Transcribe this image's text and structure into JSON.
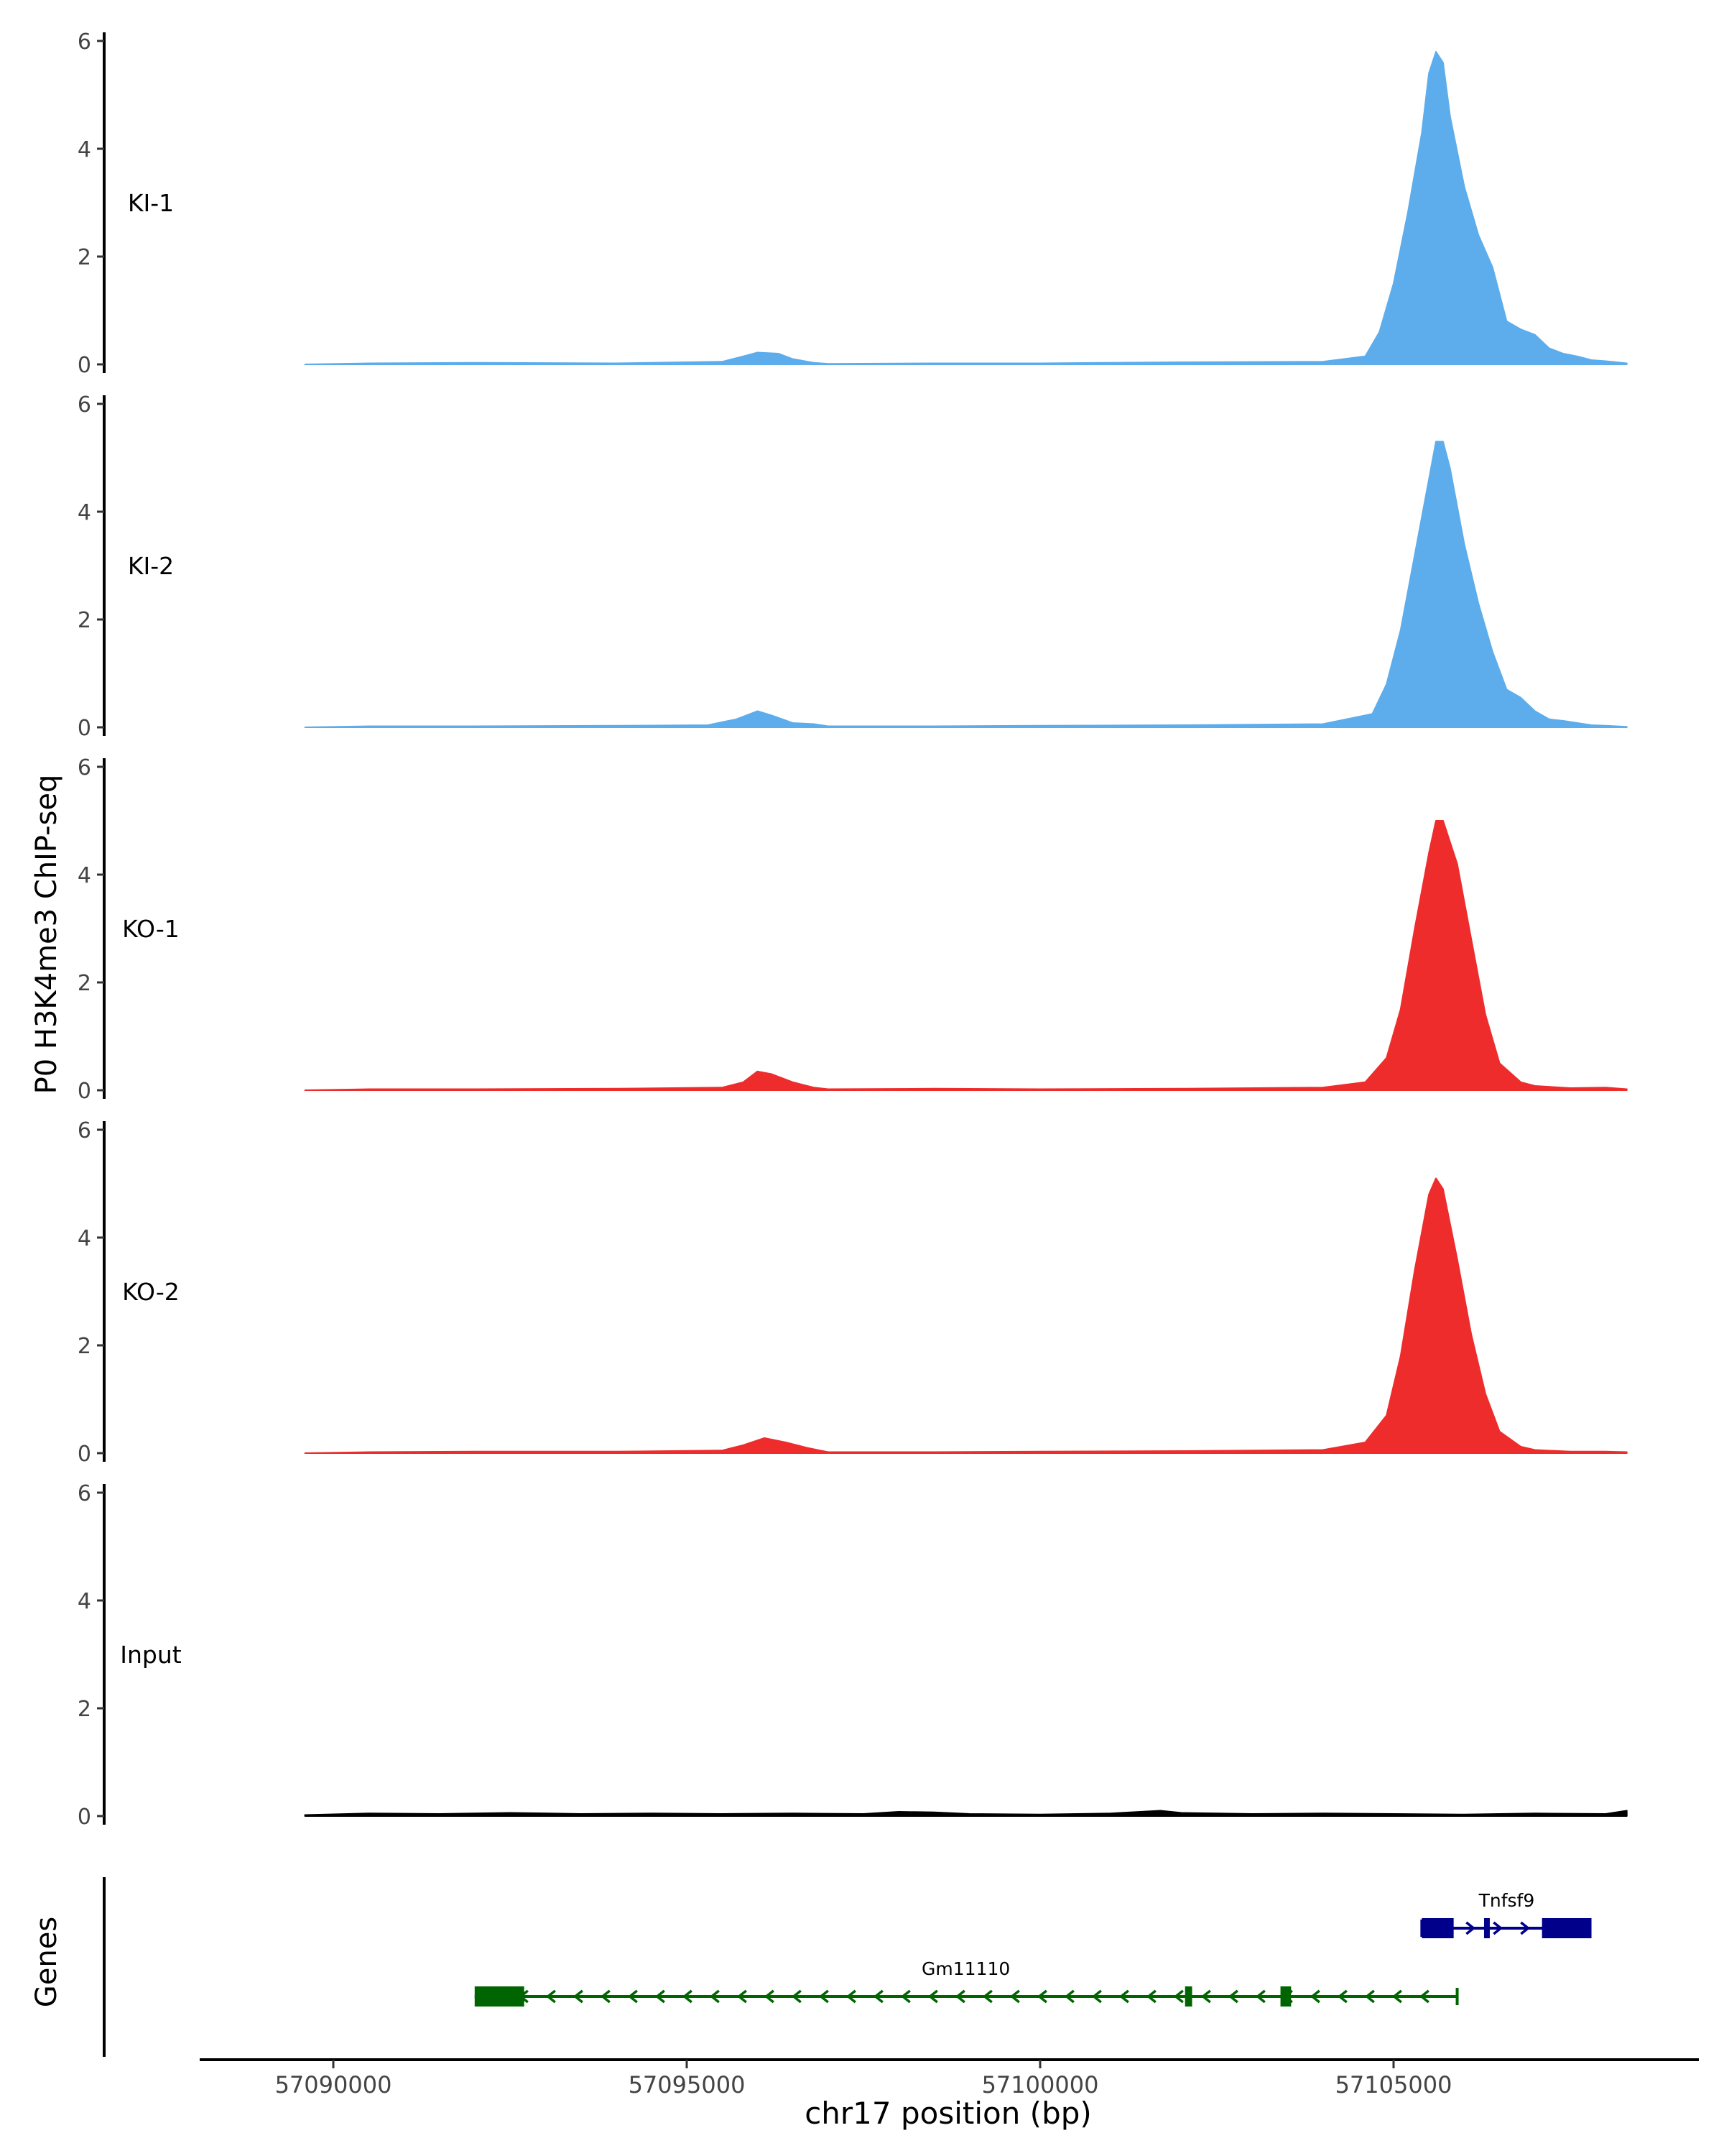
{
  "chart_data": {
    "type": "area",
    "ylabel": "P0 H3K4me3 ChIP-seq",
    "xlabel": "chr17 position (bp)",
    "genes_label": "Genes",
    "ylim": [
      0,
      6
    ],
    "yticks": [
      "0",
      "2",
      "4",
      "6"
    ],
    "xlim": [
      57088500,
      57109000
    ],
    "xticks": [
      {
        "value": 57090000,
        "label": "57090000"
      },
      {
        "value": 57095000,
        "label": "57095000"
      },
      {
        "value": 57100000,
        "label": "57100000"
      },
      {
        "value": 57105000,
        "label": "57105000"
      }
    ],
    "colors": {
      "KI": "#5DADEC",
      "KO": "#EE2C2C",
      "Input": "#000000",
      "gene_minus": "#006400",
      "gene_plus": "#00008B"
    },
    "tracks": [
      {
        "name": "KI-1",
        "color": "#5DADEC",
        "x": [
          57089600,
          57090500,
          57092000,
          57094000,
          57095500,
          57095800,
          57096000,
          57096300,
          57096500,
          57096800,
          57097000,
          57098500,
          57100000,
          57102000,
          57104000,
          57104600,
          57104800,
          57105000,
          57105200,
          57105400,
          57105500,
          57105600,
          57105700,
          57105800,
          57106000,
          57106200,
          57106400,
          57106600,
          57106800,
          57107000,
          57107200,
          57107400,
          57107600,
          57107800,
          57108000,
          57108300
        ],
        "values": [
          0,
          0.02,
          0.03,
          0.02,
          0.05,
          0.15,
          0.22,
          0.2,
          0.1,
          0.03,
          0.01,
          0.02,
          0.02,
          0.04,
          0.05,
          0.15,
          0.6,
          1.5,
          2.8,
          4.3,
          5.4,
          5.8,
          5.6,
          4.6,
          3.3,
          2.4,
          1.8,
          0.8,
          0.65,
          0.55,
          0.3,
          0.2,
          0.15,
          0.08,
          0.06,
          0.02
        ]
      },
      {
        "name": "KI-2",
        "color": "#5DADEC",
        "x": [
          57089600,
          57090500,
          57092000,
          57094000,
          57095300,
          57095700,
          57096000,
          57096200,
          57096500,
          57096800,
          57097000,
          57098500,
          57100000,
          57102000,
          57104000,
          57104700,
          57104900,
          57105100,
          57105300,
          57105500,
          57105600,
          57105700,
          57105800,
          57106000,
          57106200,
          57106400,
          57106600,
          57106800,
          57107000,
          57107200,
          57107400,
          57107600,
          57107800,
          57108000,
          57108300
        ],
        "values": [
          0,
          0.02,
          0.02,
          0.03,
          0.04,
          0.15,
          0.3,
          0.22,
          0.08,
          0.06,
          0.02,
          0.02,
          0.03,
          0.04,
          0.06,
          0.25,
          0.8,
          1.8,
          3.2,
          4.6,
          5.3,
          5.3,
          4.8,
          3.4,
          2.3,
          1.4,
          0.7,
          0.55,
          0.3,
          0.15,
          0.12,
          0.08,
          0.04,
          0.03,
          0.01
        ]
      },
      {
        "name": "KO-1",
        "color": "#EE2C2C",
        "x": [
          57089600,
          57090500,
          57092000,
          57094000,
          57095500,
          57095800,
          57096000,
          57096200,
          57096500,
          57096800,
          57097000,
          57098500,
          57100000,
          57102000,
          57104000,
          57104600,
          57104900,
          57105100,
          57105300,
          57105500,
          57105600,
          57105700,
          57105900,
          57106100,
          57106300,
          57106500,
          57106800,
          57107000,
          57107500,
          57108000,
          57108300
        ],
        "values": [
          0,
          0.02,
          0.02,
          0.03,
          0.05,
          0.15,
          0.35,
          0.3,
          0.15,
          0.05,
          0.02,
          0.03,
          0.02,
          0.03,
          0.05,
          0.15,
          0.6,
          1.5,
          3.0,
          4.4,
          5.0,
          5.0,
          4.2,
          2.8,
          1.4,
          0.5,
          0.15,
          0.08,
          0.04,
          0.05,
          0.02
        ]
      },
      {
        "name": "KO-2",
        "color": "#EE2C2C",
        "x": [
          57089600,
          57090500,
          57092000,
          57094000,
          57095500,
          57095800,
          57096100,
          57096400,
          57096700,
          57097000,
          57098500,
          57100000,
          57102000,
          57104000,
          57104600,
          57104900,
          57105100,
          57105300,
          57105500,
          57105600,
          57105700,
          57105900,
          57106100,
          57106300,
          57106500,
          57106800,
          57107000,
          57107500,
          57108000,
          57108300
        ],
        "values": [
          0,
          0.02,
          0.03,
          0.03,
          0.05,
          0.15,
          0.28,
          0.2,
          0.1,
          0.02,
          0.02,
          0.03,
          0.04,
          0.06,
          0.2,
          0.7,
          1.8,
          3.4,
          4.8,
          5.1,
          4.9,
          3.6,
          2.2,
          1.1,
          0.4,
          0.12,
          0.06,
          0.03,
          0.03,
          0.02
        ]
      },
      {
        "name": "Input",
        "color": "#000000",
        "x": [
          57089600,
          57090500,
          57091500,
          57092500,
          57093500,
          57094500,
          57095500,
          57096500,
          57097500,
          57098000,
          57098500,
          57099000,
          57100000,
          57101000,
          57101700,
          57102000,
          57103000,
          57104000,
          57105000,
          57106000,
          57107000,
          57108000,
          57108300
        ],
        "values": [
          0.02,
          0.05,
          0.04,
          0.06,
          0.04,
          0.05,
          0.04,
          0.05,
          0.04,
          0.08,
          0.07,
          0.04,
          0.03,
          0.05,
          0.1,
          0.06,
          0.04,
          0.05,
          0.04,
          0.03,
          0.05,
          0.04,
          0.1
        ]
      }
    ],
    "genes": [
      {
        "name": "Gm11110",
        "strand": "-",
        "color": "#006400",
        "start": 57092000,
        "end": 57105900,
        "exons": [
          [
            57092000,
            57092700
          ],
          [
            57102050,
            57102150
          ],
          [
            57103400,
            57103550
          ]
        ]
      },
      {
        "name": "Tnfsf9",
        "strand": "+",
        "color": "#00008B",
        "start": 57105400,
        "end": 57107800,
        "exons": [
          [
            57105400,
            57105850
          ],
          [
            57106280,
            57106300
          ],
          [
            57107100,
            57107800
          ]
        ]
      }
    ]
  }
}
